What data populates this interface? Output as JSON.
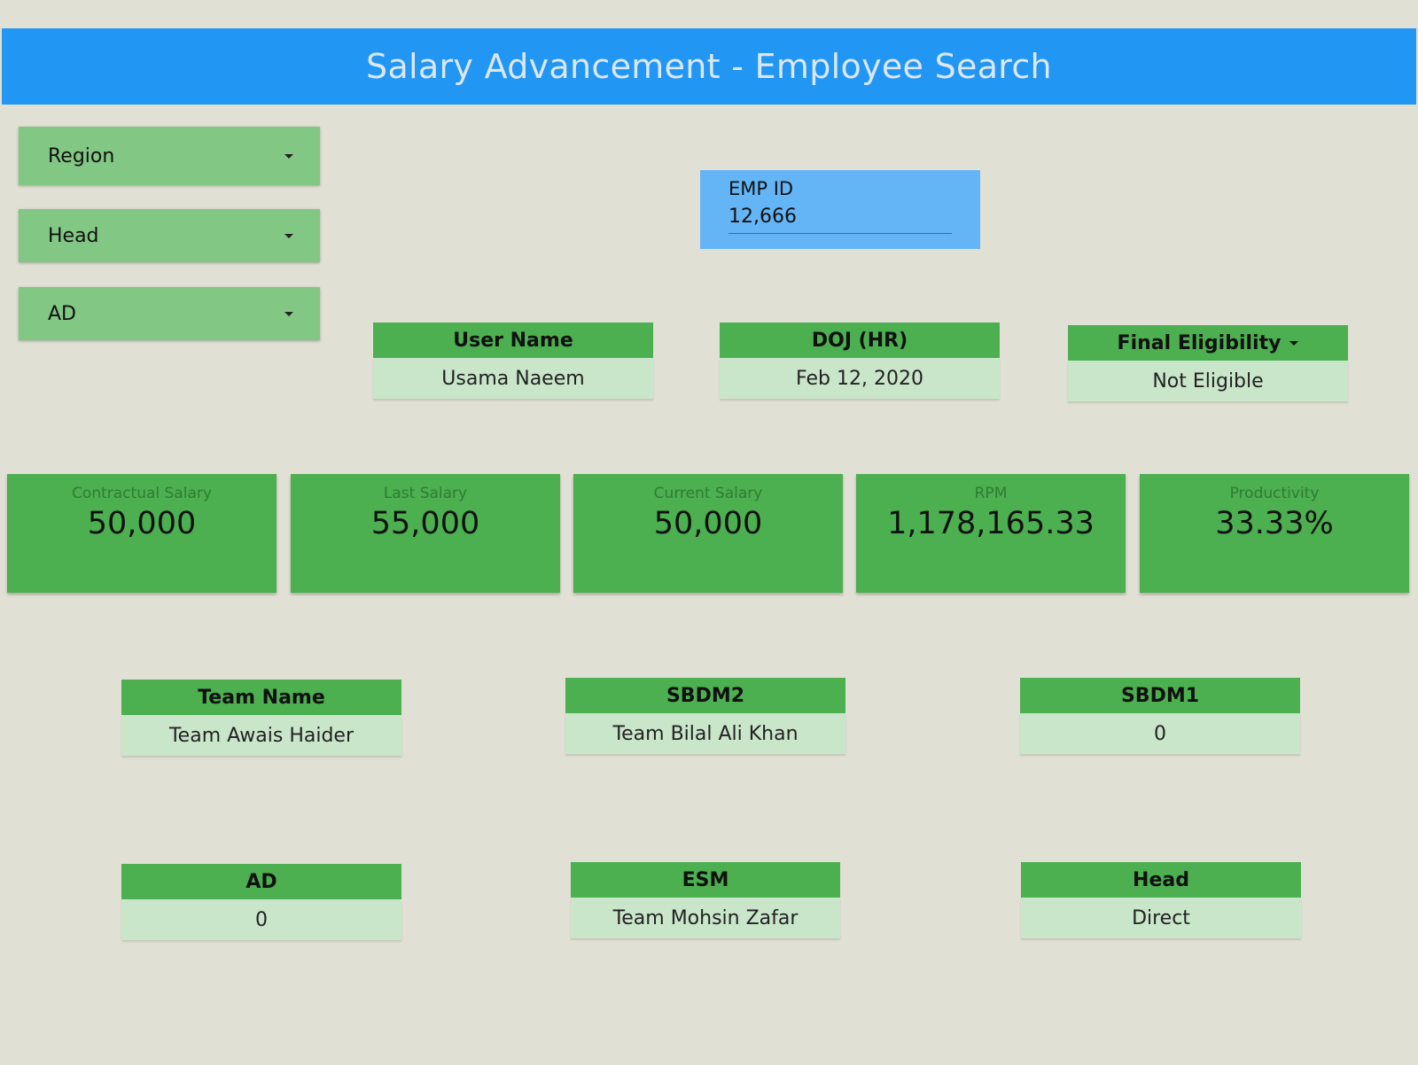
{
  "header": {
    "title": "Salary Advancement - Employee Search"
  },
  "filters": [
    {
      "label": "Region"
    },
    {
      "label": "Head"
    },
    {
      "label": "AD"
    }
  ],
  "emp_id": {
    "label": "EMP ID",
    "value": "12,666"
  },
  "top_cards": {
    "user_name": {
      "label": "User Name",
      "value": "Usama Naeem"
    },
    "doj": {
      "label": "DOJ (HR)",
      "value": "Feb 12, 2020"
    },
    "final_eligibility": {
      "label": "Final Eligibility",
      "value": "Not Eligible"
    }
  },
  "metrics": [
    {
      "label": "Contractual Salary",
      "value": "50,000"
    },
    {
      "label": "Last Salary",
      "value": "55,000"
    },
    {
      "label": "Current Salary",
      "value": "50,000"
    },
    {
      "label": "RPM",
      "value": "1,178,165.33"
    },
    {
      "label": "Productivity",
      "value": "33.33%"
    }
  ],
  "hierarchy": {
    "team_name": {
      "label": "Team Name",
      "value": "Team Awais Haider"
    },
    "sbdm2": {
      "label": "SBDM2",
      "value": "Team Bilal Ali Khan"
    },
    "sbdm1": {
      "label": "SBDM1",
      "value": "0"
    },
    "ad": {
      "label": "AD",
      "value": "0"
    },
    "esm": {
      "label": "ESM",
      "value": "Team Mohsin Zafar"
    },
    "head": {
      "label": "Head",
      "value": "Direct"
    }
  },
  "colors": {
    "header": "#2196f3",
    "filter": "#82c784",
    "card_header": "#4caf50",
    "card_body": "#c9e6ca",
    "emp_box": "#64b5f6",
    "background": "#e1e0d4"
  }
}
